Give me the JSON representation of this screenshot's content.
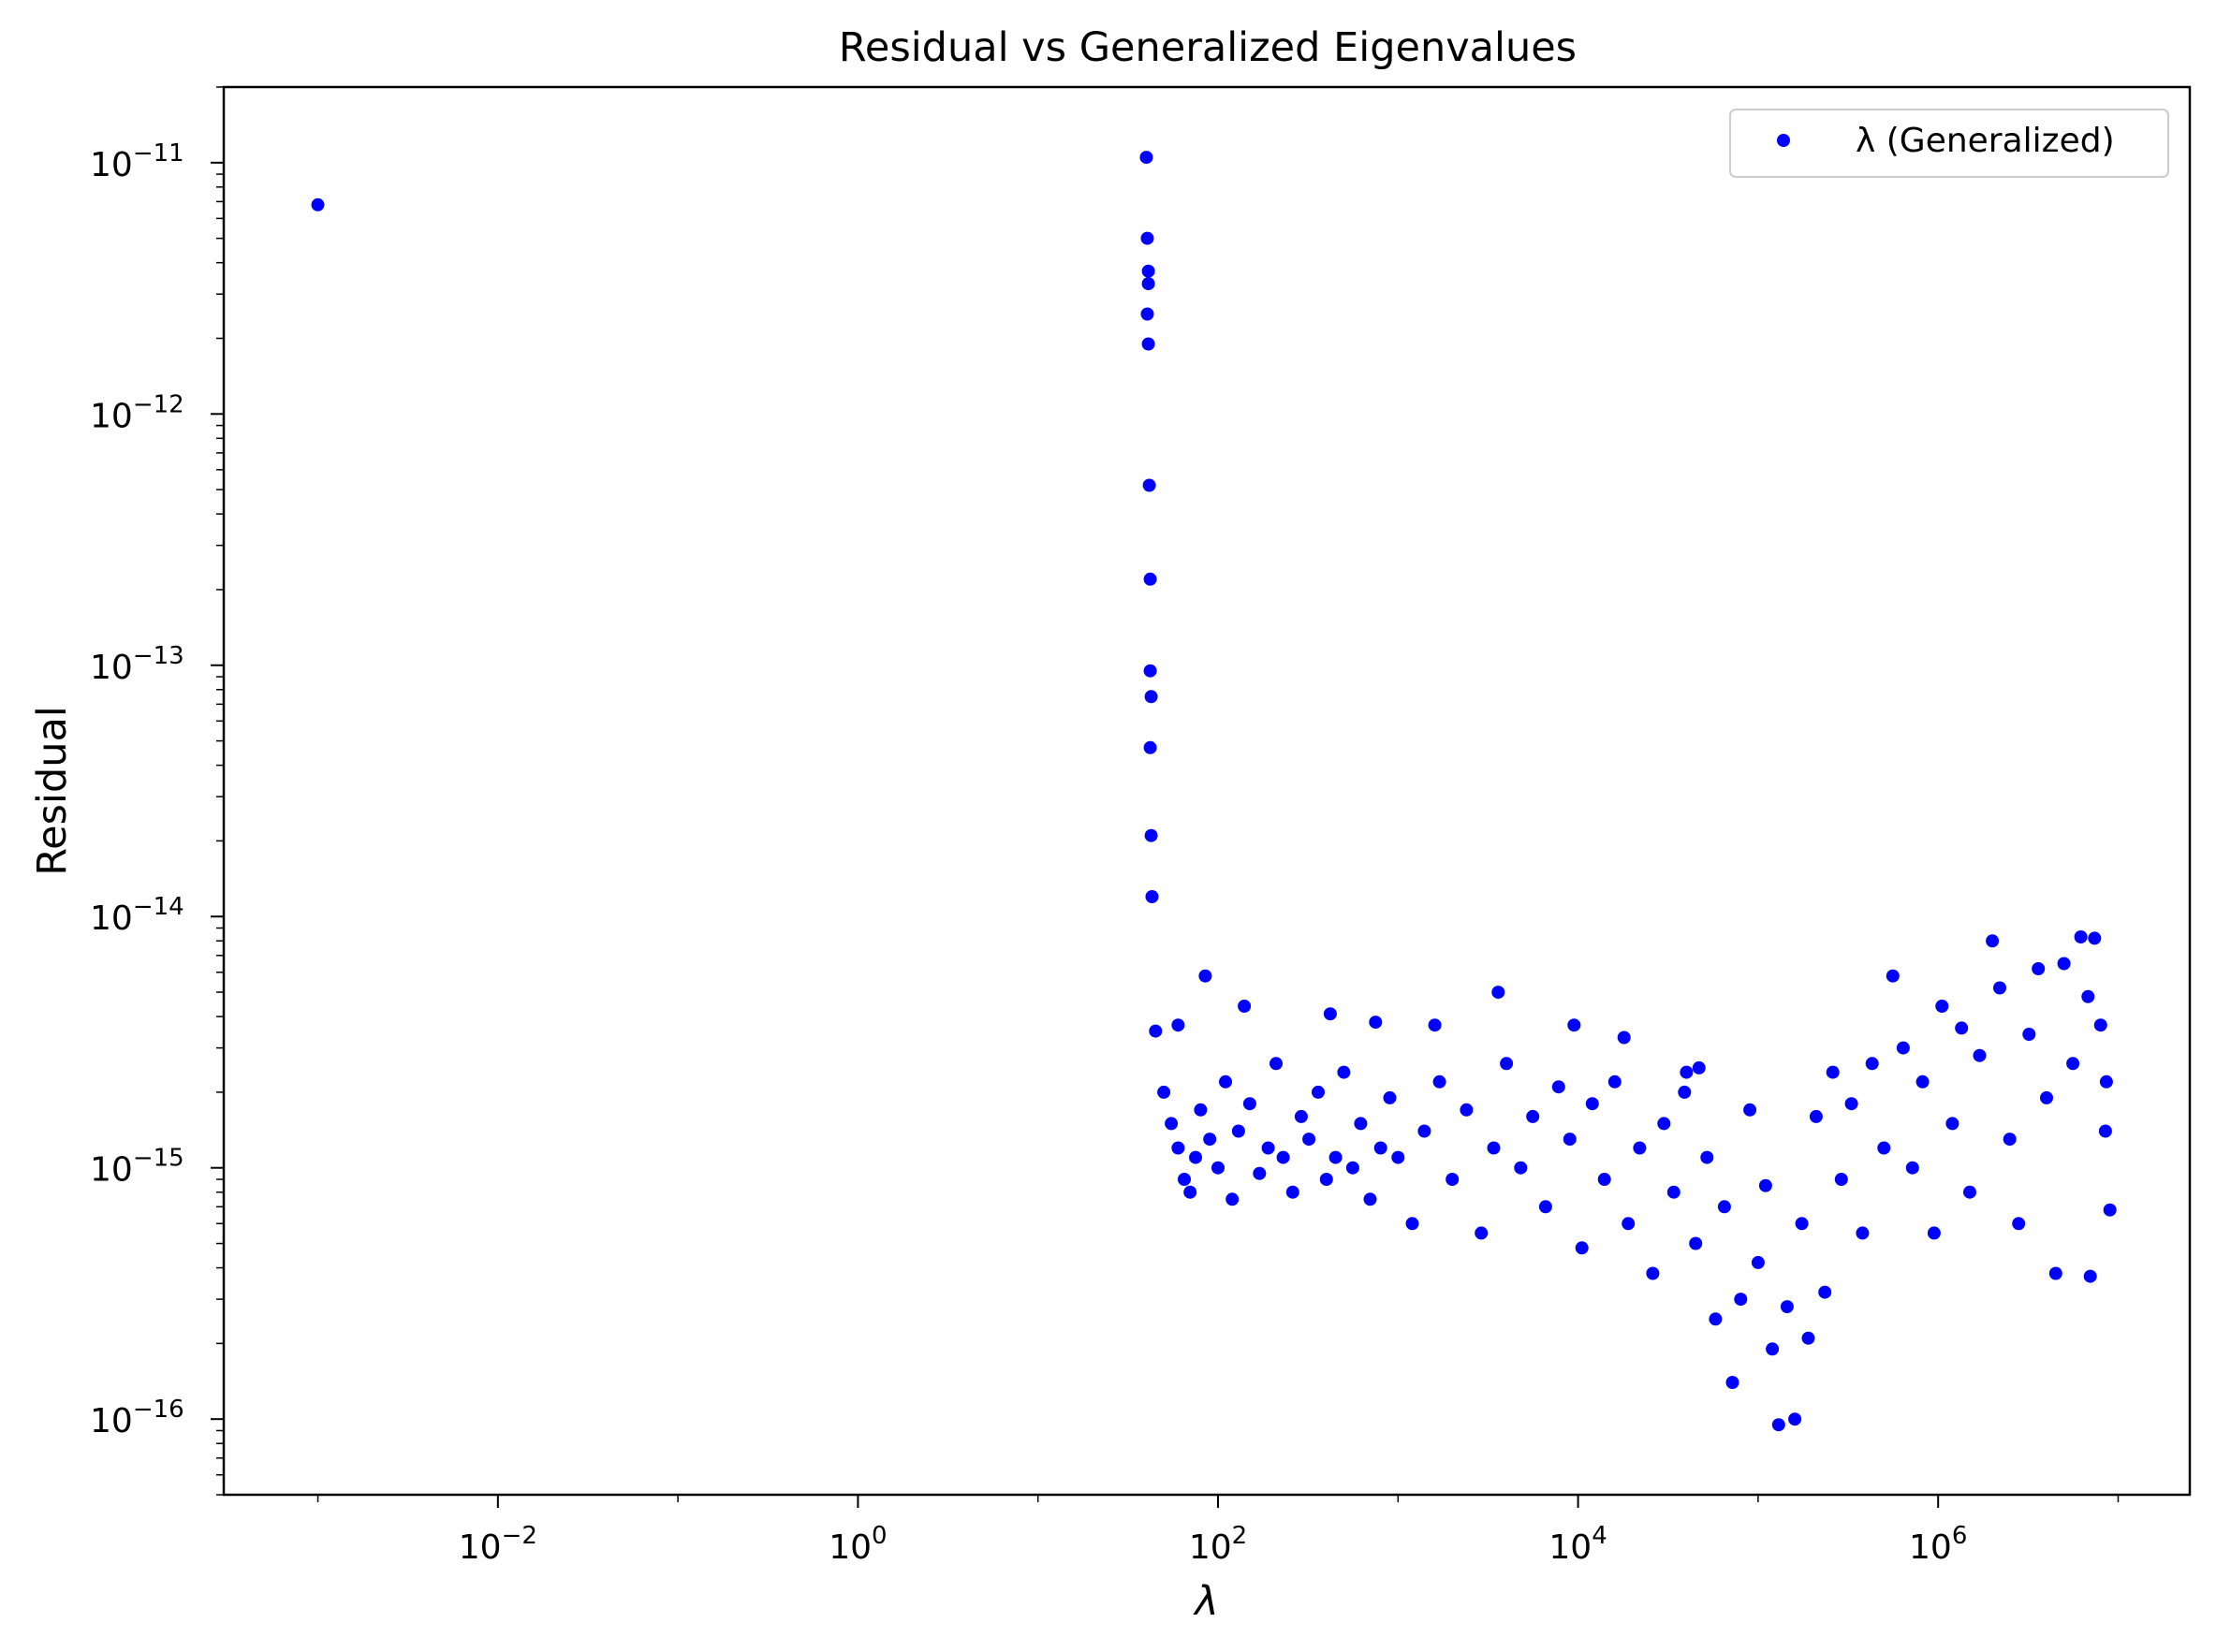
{
  "chart_data": {
    "type": "scatter",
    "title": "Residual vs Generalized Eigenvalues",
    "xlabel": "λ",
    "ylabel": "Residual",
    "xscale": "log",
    "yscale": "log",
    "xlim": [
      0.0003,
      25000000
    ],
    "ylim": [
      5e-17,
      2e-11
    ],
    "xticks": [
      {
        "value": 0.01,
        "base": "10",
        "exp": "−2"
      },
      {
        "value": 1,
        "base": "10",
        "exp": "0"
      },
      {
        "value": 100,
        "base": "10",
        "exp": "2"
      },
      {
        "value": 10000,
        "base": "10",
        "exp": "4"
      },
      {
        "value": 1000000,
        "base": "10",
        "exp": "6"
      }
    ],
    "yticks": [
      {
        "value": 1e-16,
        "base": "10",
        "exp": "−16"
      },
      {
        "value": 1e-15,
        "base": "10",
        "exp": "−15"
      },
      {
        "value": 1e-14,
        "base": "10",
        "exp": "−14"
      },
      {
        "value": 1e-13,
        "base": "10",
        "exp": "−13"
      },
      {
        "value": 1e-12,
        "base": "10",
        "exp": "−12"
      },
      {
        "value": 1e-11,
        "base": "10",
        "exp": "−11"
      }
    ],
    "grid": false,
    "legend_position": "top-right",
    "series": [
      {
        "name": "λ (Generalized)",
        "color": "#0000ff",
        "marker": "circle",
        "points": [
          [
            0.001,
            6.8e-12
          ],
          [
            40,
            1.05e-11
          ],
          [
            40.5,
            5e-12
          ],
          [
            41,
            3.7e-12
          ],
          [
            41,
            3.3e-12
          ],
          [
            40.5,
            2.5e-12
          ],
          [
            41,
            1.9e-12
          ],
          [
            41.5,
            5.2e-13
          ],
          [
            42,
            2.2e-13
          ],
          [
            42,
            9.5e-14
          ],
          [
            42.5,
            7.5e-14
          ],
          [
            42,
            4.7e-14
          ],
          [
            42.5,
            2.1e-14
          ],
          [
            43,
            1.2e-14
          ],
          [
            45,
            3.5e-15
          ],
          [
            85,
            5.8e-15
          ],
          [
            60,
            3.7e-15
          ],
          [
            140,
            4.4e-15
          ],
          [
            3600,
            5e-15
          ],
          [
            420,
            4.1e-15
          ],
          [
            750,
            3.8e-15
          ],
          [
            1600,
            3.7e-15
          ],
          [
            9500,
            3.7e-15
          ],
          [
            18000,
            3.3e-15
          ],
          [
            40000,
            2.4e-15
          ],
          [
            47000,
            2.5e-15
          ],
          [
            50,
            2e-15
          ],
          [
            55,
            1.5e-15
          ],
          [
            60,
            1.2e-15
          ],
          [
            65,
            9e-16
          ],
          [
            70,
            8e-16
          ],
          [
            75,
            1.1e-15
          ],
          [
            80,
            1.7e-15
          ],
          [
            90,
            1.3e-15
          ],
          [
            100,
            1e-15
          ],
          [
            110,
            2.2e-15
          ],
          [
            120,
            7.5e-16
          ],
          [
            130,
            1.4e-15
          ],
          [
            150,
            1.8e-15
          ],
          [
            170,
            9.5e-16
          ],
          [
            190,
            1.2e-15
          ],
          [
            210,
            2.6e-15
          ],
          [
            230,
            1.1e-15
          ],
          [
            260,
            8e-16
          ],
          [
            290,
            1.6e-15
          ],
          [
            320,
            1.3e-15
          ],
          [
            360,
            2e-15
          ],
          [
            400,
            9e-16
          ],
          [
            450,
            1.1e-15
          ],
          [
            500,
            2.4e-15
          ],
          [
            560,
            1e-15
          ],
          [
            620,
            1.5e-15
          ],
          [
            700,
            7.5e-16
          ],
          [
            800,
            1.2e-15
          ],
          [
            900,
            1.9e-15
          ],
          [
            1000,
            1.1e-15
          ],
          [
            1200,
            6e-16
          ],
          [
            1400,
            1.4e-15
          ],
          [
            1700,
            2.2e-15
          ],
          [
            2000,
            9e-16
          ],
          [
            2400,
            1.7e-15
          ],
          [
            2900,
            5.5e-16
          ],
          [
            3400,
            1.2e-15
          ],
          [
            4000,
            2.6e-15
          ],
          [
            4800,
            1e-15
          ],
          [
            5600,
            1.6e-15
          ],
          [
            6600,
            7e-16
          ],
          [
            7800,
            2.1e-15
          ],
          [
            9000,
            1.3e-15
          ],
          [
            10500,
            4.8e-16
          ],
          [
            12000,
            1.8e-15
          ],
          [
            14000,
            9e-16
          ],
          [
            16000,
            2.2e-15
          ],
          [
            19000,
            6e-16
          ],
          [
            22000,
            1.2e-15
          ],
          [
            26000,
            3.8e-16
          ],
          [
            30000,
            1.5e-15
          ],
          [
            34000,
            8e-16
          ],
          [
            39000,
            2e-15
          ],
          [
            45000,
            5e-16
          ],
          [
            52000,
            1.1e-15
          ],
          [
            58000,
            2.5e-16
          ],
          [
            65000,
            7e-16
          ],
          [
            72000,
            1.4e-16
          ],
          [
            80000,
            3e-16
          ],
          [
            90000,
            1.7e-15
          ],
          [
            100000,
            4.2e-16
          ],
          [
            110000,
            8.5e-16
          ],
          [
            120000,
            1.9e-16
          ],
          [
            130000,
            9.5e-17
          ],
          [
            145000,
            2.8e-16
          ],
          [
            160000,
            1e-16
          ],
          [
            175000,
            6e-16
          ],
          [
            190000,
            2.1e-16
          ],
          [
            210000,
            1.6e-15
          ],
          [
            235000,
            3.2e-16
          ],
          [
            260000,
            2.4e-15
          ],
          [
            290000,
            9e-16
          ],
          [
            330000,
            1.8e-15
          ],
          [
            380000,
            5.5e-16
          ],
          [
            430000,
            2.6e-15
          ],
          [
            500000,
            1.2e-15
          ],
          [
            560000,
            5.8e-15
          ],
          [
            640000,
            3e-15
          ],
          [
            720000,
            1e-15
          ],
          [
            820000,
            2.2e-15
          ],
          [
            950000,
            5.5e-16
          ],
          [
            1050000,
            4.4e-15
          ],
          [
            1200000,
            1.5e-15
          ],
          [
            1350000,
            3.6e-15
          ],
          [
            1500000,
            8e-16
          ],
          [
            1700000,
            2.8e-15
          ],
          [
            2000000,
            8e-15
          ],
          [
            2200000,
            5.2e-15
          ],
          [
            2500000,
            1.3e-15
          ],
          [
            2800000,
            6e-16
          ],
          [
            3200000,
            3.4e-15
          ],
          [
            3600000,
            6.2e-15
          ],
          [
            4000000,
            1.9e-15
          ],
          [
            4500000,
            3.8e-16
          ],
          [
            5000000,
            6.5e-15
          ],
          [
            5600000,
            2.6e-15
          ],
          [
            6200000,
            8.3e-15
          ],
          [
            6800000,
            4.8e-15
          ],
          [
            7400000,
            8.2e-15
          ],
          [
            8000000,
            3.7e-15
          ],
          [
            8500000,
            1.4e-15
          ],
          [
            9000000,
            6.8e-16
          ],
          [
            8600000,
            2.2e-15
          ],
          [
            7000000,
            3.7e-16
          ]
        ]
      }
    ]
  }
}
